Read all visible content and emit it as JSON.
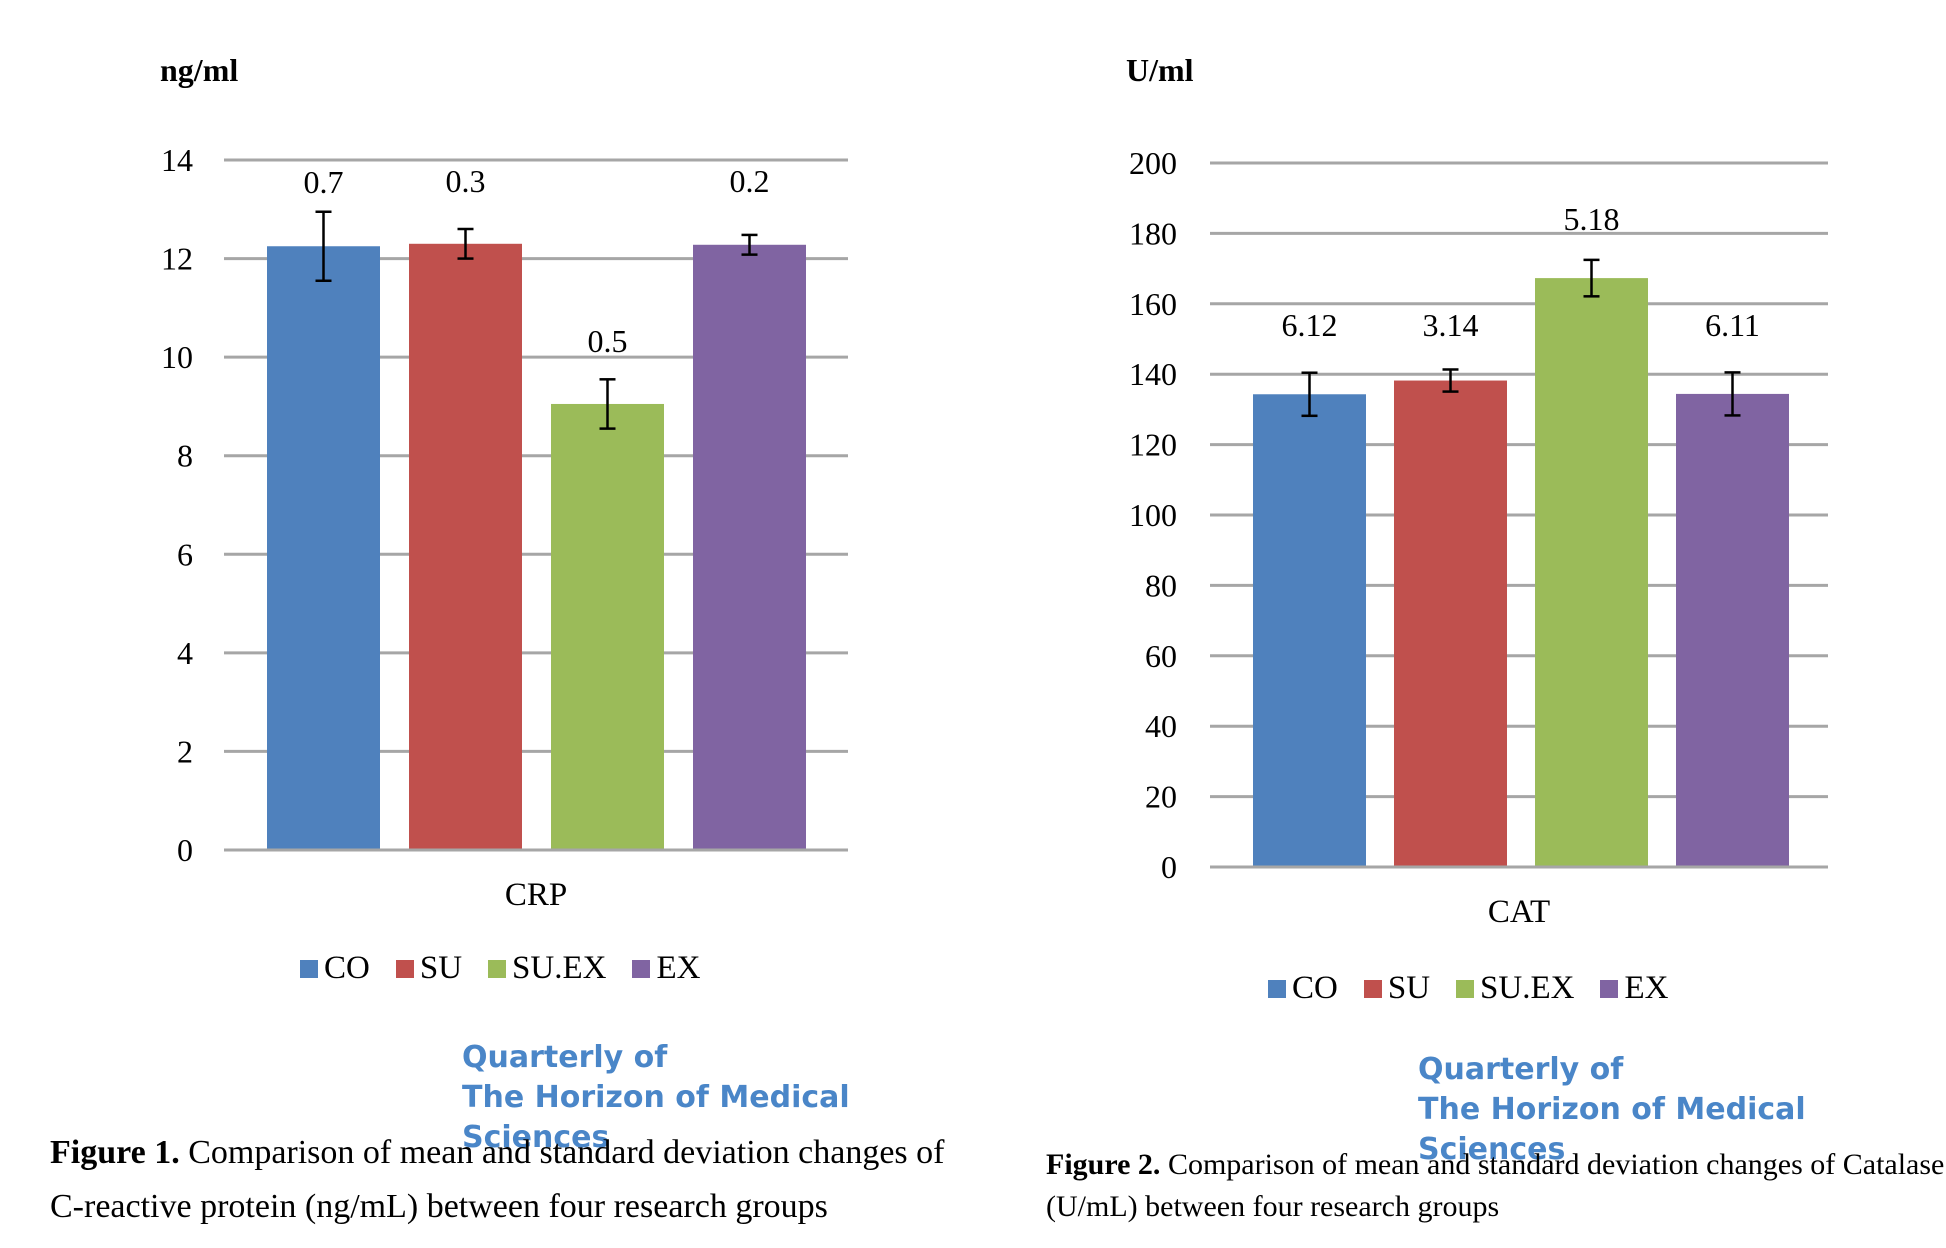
{
  "figures": [
    {
      "unit_label": "ng/ml",
      "journal_line1": "Quarterly of",
      "journal_line2": "The Horizon of Medical Sciences",
      "caption_label": "Figure 1.",
      "caption_text": " Comparison of mean and standard deviation changes of C-reactive protein (ng/mL) between four research groups"
    },
    {
      "unit_label": "U/ml",
      "journal_line1": "Quarterly of",
      "journal_line2": "The Horizon of Medical Sciences",
      "caption_label": "Figure 2.",
      "caption_text": " Comparison of mean and standard deviation changes of Catalase (U/mL) between four research groups"
    }
  ],
  "chart_data": [
    {
      "type": "bar",
      "categories": [
        "CRP"
      ],
      "xlabel": "CRP",
      "ylabel": "ng/ml",
      "ylim": [
        0,
        14
      ],
      "yticks": [
        0,
        2,
        4,
        6,
        8,
        10,
        12,
        14
      ],
      "grid": true,
      "legend_position": "bottom",
      "series": [
        {
          "name": "CO",
          "values": [
            12.25
          ],
          "error": [
            0.7
          ],
          "data_label": "0.7",
          "color": "#4f81bd"
        },
        {
          "name": "SU",
          "values": [
            12.3
          ],
          "error": [
            0.3
          ],
          "data_label": "0.3",
          "color": "#c0504d"
        },
        {
          "name": "SU.EX",
          "values": [
            9.05
          ],
          "error": [
            0.5
          ],
          "data_label": "0.5",
          "color": "#9bbb59"
        },
        {
          "name": "EX",
          "values": [
            12.28
          ],
          "error": [
            0.2
          ],
          "data_label": "0.2",
          "color": "#8064a2"
        }
      ]
    },
    {
      "type": "bar",
      "categories": [
        "CAT"
      ],
      "xlabel": "CAT",
      "ylabel": "U/ml",
      "ylim": [
        0,
        200
      ],
      "yticks": [
        0,
        20,
        40,
        60,
        80,
        100,
        120,
        140,
        160,
        180,
        200
      ],
      "grid": true,
      "legend_position": "bottom",
      "series": [
        {
          "name": "CO",
          "values": [
            134.3
          ],
          "error": [
            6.12
          ],
          "data_label": "6.12",
          "color": "#4f81bd"
        },
        {
          "name": "SU",
          "values": [
            138.2
          ],
          "error": [
            3.14
          ],
          "data_label": "3.14",
          "color": "#c0504d"
        },
        {
          "name": "SU.EX",
          "values": [
            167.3
          ],
          "error": [
            5.18
          ],
          "data_label": "5.18",
          "color": "#9bbb59"
        },
        {
          "name": "EX",
          "values": [
            134.4
          ],
          "error": [
            6.11
          ],
          "data_label": "6.11",
          "color": "#8064a2"
        }
      ]
    }
  ]
}
